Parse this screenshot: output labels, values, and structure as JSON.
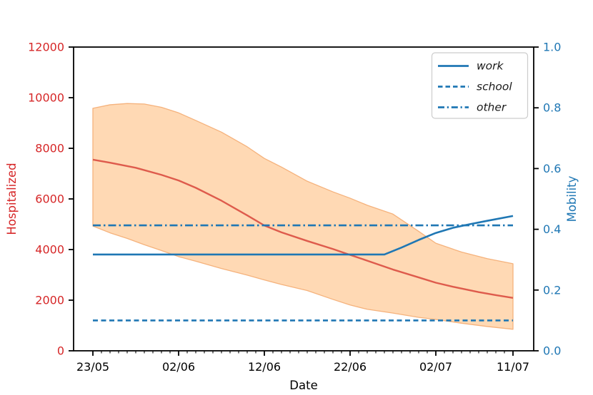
{
  "chart_data": {
    "type": "line",
    "xlabel": "Date",
    "ylabel_left": "Hospitalized",
    "ylabel_right": "Mobility",
    "x_ticks": {
      "days": [
        0,
        10,
        20,
        30,
        40,
        49
      ],
      "labels": [
        "23/05",
        "02/06",
        "12/06",
        "22/06",
        "02/07",
        "11/07"
      ]
    },
    "x_range_days": [
      0,
      49
    ],
    "minor_tick_every_days": 1,
    "ylim_left": [
      0,
      12000
    ],
    "yticks_left": [
      0,
      2000,
      4000,
      6000,
      8000,
      10000,
      12000
    ],
    "ylim_right": [
      0.0,
      1.0
    ],
    "yticks_right": [
      0.0,
      0.2,
      0.4,
      0.6,
      0.8,
      1.0
    ],
    "grid": false,
    "legend": {
      "position": "upper right",
      "items": [
        {
          "label": "work",
          "style": "solid"
        },
        {
          "label": "school",
          "style": "dashed"
        },
        {
          "label": "other",
          "style": "dashdot"
        }
      ]
    },
    "band": {
      "name": "hospitalized_confidence_band",
      "axis": "left",
      "x": [
        0,
        2,
        4,
        6,
        8,
        10,
        12,
        15,
        18,
        20,
        22,
        25,
        28,
        30,
        32,
        35,
        38,
        40,
        43,
        46,
        49
      ],
      "upper": [
        9580,
        9720,
        9770,
        9750,
        9620,
        9400,
        9100,
        8640,
        8060,
        7600,
        7260,
        6700,
        6280,
        6030,
        5750,
        5400,
        4720,
        4250,
        3900,
        3640,
        3440
      ],
      "lower": [
        4930,
        4660,
        4440,
        4190,
        3960,
        3720,
        3540,
        3250,
        2990,
        2800,
        2620,
        2380,
        2030,
        1810,
        1640,
        1490,
        1320,
        1240,
        1090,
        960,
        850
      ]
    },
    "series": [
      {
        "name": "hospitalized_mean",
        "axis": "left",
        "style": "solid",
        "x": [
          0,
          2,
          5,
          8,
          10,
          12,
          15,
          18,
          20,
          22,
          25,
          28,
          30,
          32,
          35,
          38,
          40,
          42,
          45,
          47,
          49
        ],
        "y": [
          7550,
          7430,
          7230,
          6950,
          6730,
          6440,
          5930,
          5350,
          4950,
          4680,
          4340,
          4020,
          3790,
          3560,
          3210,
          2900,
          2690,
          2530,
          2320,
          2200,
          2090
        ]
      },
      {
        "name": "work",
        "axis": "right",
        "style": "solid",
        "x": [
          0,
          34,
          36,
          38,
          40,
          42,
          44,
          46,
          49
        ],
        "y": [
          0.317,
          0.317,
          0.34,
          0.365,
          0.388,
          0.405,
          0.417,
          0.428,
          0.444
        ]
      },
      {
        "name": "school",
        "axis": "right",
        "style": "dashed",
        "x": [
          0,
          49
        ],
        "y": [
          0.1,
          0.1
        ]
      },
      {
        "name": "other",
        "axis": "right",
        "style": "dashdot",
        "x": [
          0,
          49
        ],
        "y": [
          0.413,
          0.413
        ]
      }
    ],
    "colors": {
      "left_axis_text": "#d62728",
      "right_axis_text": "#1f77b4",
      "mean_line": "#de5b4c",
      "band_fill": "#ffd9b4",
      "band_edge": "#f5b27c",
      "mobility_lines": "#1f77b4",
      "spine": "#000000",
      "tick_mark": "#000000",
      "x_text": "#000000",
      "legend_text": "#1a1a1a",
      "legend_border": "#cccccc"
    }
  }
}
